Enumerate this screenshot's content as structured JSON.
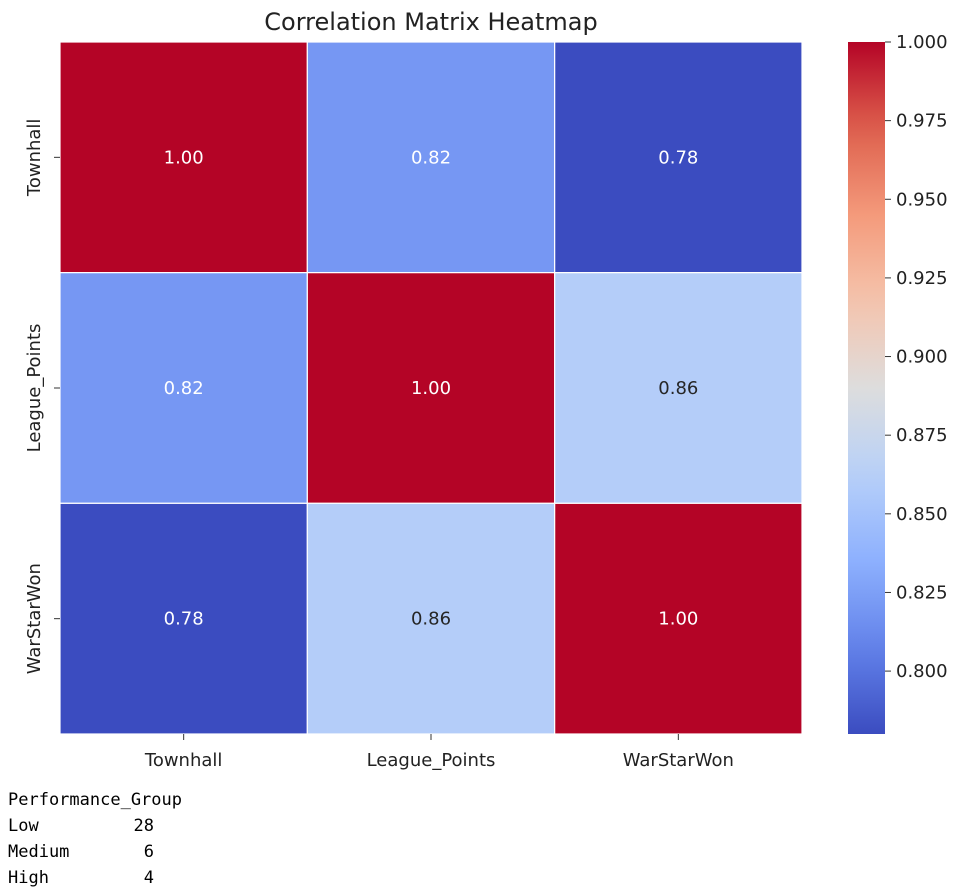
{
  "chart_data": {
    "type": "heatmap",
    "title": "Correlation Matrix Heatmap",
    "x_categories": [
      "Townhall",
      "League_Points",
      "WarStarWon"
    ],
    "y_categories": [
      "Townhall",
      "League_Points",
      "WarStarWon"
    ],
    "values": [
      [
        1.0,
        0.82,
        0.78
      ],
      [
        0.82,
        1.0,
        0.86
      ],
      [
        0.78,
        0.86,
        1.0
      ]
    ],
    "annotation_format": "2 decimals",
    "colormap": "coolwarm",
    "vmin": 0.78,
    "vmax": 1.0,
    "colorbar": {
      "position": "right",
      "ticks": [
        "0.800",
        "0.825",
        "0.850",
        "0.875",
        "0.900",
        "0.925",
        "0.950",
        "0.975",
        "1.000"
      ]
    },
    "grid": false
  },
  "output": {
    "header": "Performance_Group",
    "rows": [
      {
        "name": "Low",
        "value": "28"
      },
      {
        "name": "Medium",
        "value": "6"
      },
      {
        "name": "High",
        "value": "4"
      }
    ]
  }
}
